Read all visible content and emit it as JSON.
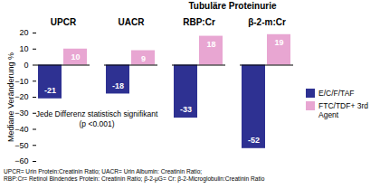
{
  "chart_data": {
    "type": "bar",
    "categories": [
      "UPCR",
      "UACR",
      "RBP:Cr",
      "β-2-m:Cr"
    ],
    "series": [
      {
        "name": "E/C/F/TAF",
        "color": "#2e3192",
        "values": [
          -21,
          -18,
          -33,
          -52
        ]
      },
      {
        "name": "FTC/TDF+ 3rd Agent",
        "color": "#e8a6d2",
        "values": [
          10,
          9,
          18,
          19
        ]
      }
    ],
    "y_label": "Mediane Veränderung %",
    "ylim": [
      -60,
      20
    ],
    "yticks": [
      -60,
      -50,
      -40,
      -30,
      -20,
      -10,
      0,
      10,
      20
    ],
    "grid": false,
    "data_labels": true,
    "legend": "right",
    "group_label": {
      "text": "Tubuläre Proteinurie",
      "categories": [
        "RBP:Cr",
        "β-2-m:Cr"
      ]
    },
    "annotations": [
      "Jede Differenz statistisch signifikant",
      "(p <0.001)"
    ],
    "footnote": [
      "UPCR= Urin Protein:Creatinin Ratio; UACR= Urin Albumin: Creatinin Ratio;",
      "RBP:Cr= Retinol Bindendes Protein: Creatinin Ratio; β-2-μG= Cr: β-2-Microglobulin:Creatinin Ratio"
    ]
  }
}
